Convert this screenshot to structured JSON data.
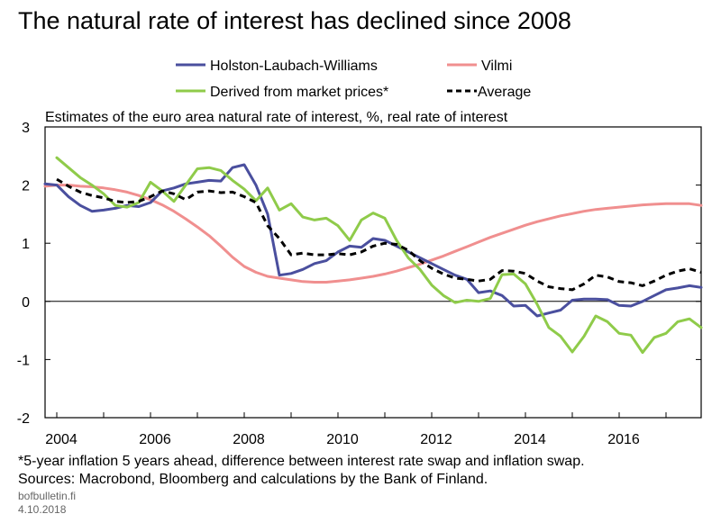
{
  "chart_data": {
    "type": "line",
    "title": "The natural rate of interest has declined since 2008",
    "subtitle": "Estimates of the euro area natural rate of interest, %, real rate of interest",
    "xlabel": "",
    "ylabel": "",
    "xlim": [
      2003.75,
      2017.75
    ],
    "ylim": [
      -2,
      3
    ],
    "x_ticks": [
      2004,
      2006,
      2008,
      2010,
      2012,
      2014,
      2016
    ],
    "y_ticks": [
      3,
      2,
      1,
      0,
      -1,
      -2
    ],
    "grid": false,
    "legend_placement": "top",
    "series": [
      {
        "name": "Holston-Laubach-Williams",
        "color": "#4a4f9e",
        "style": "solid",
        "x": [
          2003.75,
          2004,
          2004.25,
          2004.5,
          2004.75,
          2005,
          2005.25,
          2005.5,
          2005.75,
          2006,
          2006.25,
          2006.5,
          2006.75,
          2007,
          2007.25,
          2007.5,
          2007.75,
          2008,
          2008.25,
          2008.5,
          2008.75,
          2009,
          2009.25,
          2009.5,
          2009.75,
          2010,
          2010.25,
          2010.5,
          2010.75,
          2011,
          2011.25,
          2011.5,
          2011.75,
          2012,
          2012.25,
          2012.5,
          2012.75,
          2013,
          2013.25,
          2013.5,
          2013.75,
          2014,
          2014.25,
          2014.5,
          2014.75,
          2015,
          2015.25,
          2015.5,
          2015.75,
          2016,
          2016.25,
          2016.5,
          2016.75,
          2017,
          2017.25,
          2017.5,
          2017.75
        ],
        "y": [
          2.02,
          2.0,
          1.8,
          1.65,
          1.55,
          1.57,
          1.6,
          1.65,
          1.63,
          1.7,
          1.9,
          1.95,
          2.02,
          2.05,
          2.08,
          2.07,
          2.3,
          2.35,
          2.0,
          1.5,
          0.45,
          0.48,
          0.55,
          0.65,
          0.7,
          0.85,
          0.95,
          0.93,
          1.08,
          1.05,
          0.95,
          0.85,
          0.75,
          0.65,
          0.55,
          0.45,
          0.38,
          0.15,
          0.18,
          0.1,
          -0.08,
          -0.07,
          -0.25,
          -0.2,
          -0.15,
          0.02,
          0.04,
          0.04,
          0.03,
          -0.07,
          -0.08,
          0.0,
          0.1,
          0.2,
          0.23,
          0.27,
          0.24
        ]
      },
      {
        "name": "Vilmi",
        "color": "#f08f8f",
        "style": "solid",
        "x": [
          2003.75,
          2004,
          2004.25,
          2004.5,
          2004.75,
          2005,
          2005.25,
          2005.5,
          2005.75,
          2006,
          2006.25,
          2006.5,
          2006.75,
          2007,
          2007.25,
          2007.5,
          2007.75,
          2008,
          2008.25,
          2008.5,
          2008.75,
          2009,
          2009.25,
          2009.5,
          2009.75,
          2010,
          2010.25,
          2010.5,
          2010.75,
          2011,
          2011.25,
          2011.5,
          2011.75,
          2012,
          2012.25,
          2012.5,
          2012.75,
          2013,
          2013.25,
          2013.5,
          2013.75,
          2014,
          2014.25,
          2014.5,
          2014.75,
          2015,
          2015.25,
          2015.5,
          2015.75,
          2016,
          2016.25,
          2016.5,
          2016.75,
          2017,
          2017.25,
          2017.5,
          2017.75
        ],
        "y": [
          1.98,
          2.0,
          2.0,
          1.98,
          1.97,
          1.95,
          1.92,
          1.88,
          1.82,
          1.75,
          1.66,
          1.55,
          1.42,
          1.28,
          1.13,
          0.95,
          0.76,
          0.6,
          0.5,
          0.43,
          0.4,
          0.37,
          0.34,
          0.33,
          0.33,
          0.35,
          0.37,
          0.4,
          0.43,
          0.47,
          0.52,
          0.58,
          0.64,
          0.71,
          0.78,
          0.86,
          0.94,
          1.02,
          1.1,
          1.17,
          1.24,
          1.31,
          1.37,
          1.42,
          1.47,
          1.51,
          1.55,
          1.58,
          1.6,
          1.62,
          1.64,
          1.66,
          1.67,
          1.68,
          1.68,
          1.68,
          1.65
        ]
      },
      {
        "name": "Derived from market prices*",
        "color": "#8fcb4a",
        "style": "solid",
        "x": [
          2004,
          2004.25,
          2004.5,
          2004.75,
          2005,
          2005.25,
          2005.5,
          2005.75,
          2006,
          2006.25,
          2006.5,
          2006.75,
          2007,
          2007.25,
          2007.5,
          2007.75,
          2008,
          2008.25,
          2008.5,
          2008.75,
          2009,
          2009.25,
          2009.5,
          2009.75,
          2010,
          2010.25,
          2010.5,
          2010.75,
          2011,
          2011.25,
          2011.5,
          2011.75,
          2012,
          2012.25,
          2012.5,
          2012.75,
          2013,
          2013.25,
          2013.5,
          2013.75,
          2014,
          2014.25,
          2014.5,
          2014.75,
          2015,
          2015.25,
          2015.5,
          2015.75,
          2016,
          2016.25,
          2016.5,
          2016.75,
          2017,
          2017.25,
          2017.5,
          2017.75
        ],
        "y": [
          2.47,
          2.3,
          2.13,
          2.0,
          1.85,
          1.65,
          1.62,
          1.7,
          2.05,
          1.9,
          1.72,
          2.0,
          2.28,
          2.3,
          2.25,
          2.08,
          1.93,
          1.73,
          1.95,
          1.57,
          1.68,
          1.45,
          1.4,
          1.43,
          1.3,
          1.05,
          1.4,
          1.52,
          1.43,
          1.05,
          0.75,
          0.55,
          0.28,
          0.1,
          -0.02,
          0.02,
          0.0,
          0.05,
          0.46,
          0.47,
          0.3,
          -0.05,
          -0.45,
          -0.6,
          -0.87,
          -0.6,
          -0.25,
          -0.35,
          -0.55,
          -0.58,
          -0.88,
          -0.62,
          -0.55,
          -0.35,
          -0.3,
          -0.45
        ]
      },
      {
        "name": "Average",
        "color": "#000000",
        "style": "dashed",
        "x": [
          2004,
          2004.25,
          2004.5,
          2004.75,
          2005,
          2005.25,
          2005.5,
          2005.75,
          2006,
          2006.25,
          2006.5,
          2006.75,
          2007,
          2007.25,
          2007.5,
          2007.75,
          2008,
          2008.25,
          2008.5,
          2008.75,
          2009,
          2009.25,
          2009.5,
          2009.75,
          2010,
          2010.25,
          2010.5,
          2010.75,
          2011,
          2011.25,
          2011.5,
          2011.75,
          2012,
          2012.25,
          2012.5,
          2012.75,
          2013,
          2013.25,
          2013.5,
          2013.75,
          2014,
          2014.25,
          2014.5,
          2014.75,
          2015,
          2015.25,
          2015.5,
          2015.75,
          2016,
          2016.25,
          2016.5,
          2016.75,
          2017,
          2017.25,
          2017.5,
          2017.75
        ],
        "y": [
          2.1,
          1.98,
          1.88,
          1.82,
          1.78,
          1.72,
          1.7,
          1.72,
          1.8,
          1.9,
          1.85,
          1.75,
          1.88,
          1.9,
          1.87,
          1.88,
          1.8,
          1.7,
          1.3,
          1.08,
          0.8,
          0.83,
          0.8,
          0.8,
          0.82,
          0.8,
          0.85,
          0.95,
          1.0,
          0.98,
          0.88,
          0.7,
          0.57,
          0.47,
          0.4,
          0.38,
          0.35,
          0.38,
          0.53,
          0.52,
          0.48,
          0.35,
          0.25,
          0.22,
          0.2,
          0.3,
          0.45,
          0.42,
          0.34,
          0.32,
          0.27,
          0.35,
          0.45,
          0.52,
          0.56,
          0.5
        ]
      }
    ]
  },
  "footnote": "*5-year inflation 5 years ahead, difference between interest rate swap and inflation swap.",
  "sources": "Sources: Macrobond, Bloomberg and calculations by the Bank of Finland.",
  "site": "bofbulletin.fi",
  "date": "4.10.2018"
}
